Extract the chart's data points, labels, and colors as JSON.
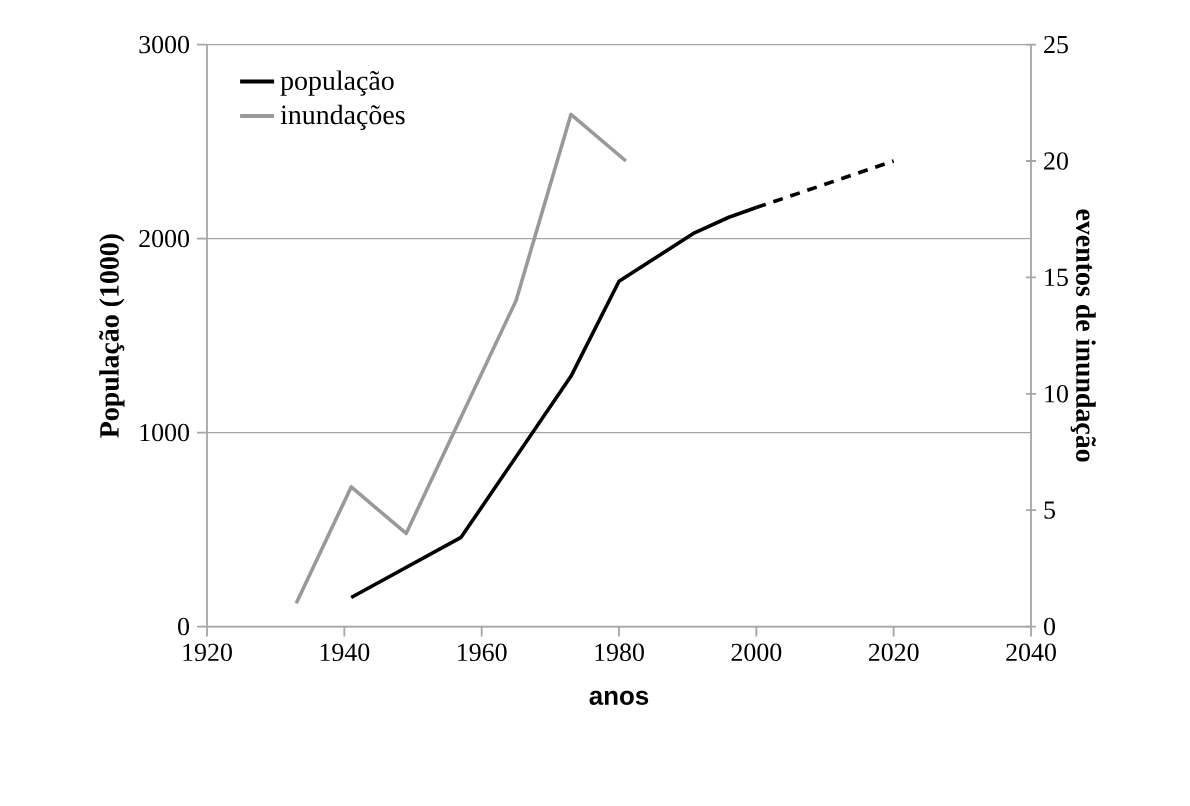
{
  "chart_data": {
    "type": "line",
    "xlabel": "anos",
    "ylabel": "População (1000)",
    "y2label": "eventos de inundação",
    "xlim": [
      1920,
      2040
    ],
    "xticks": [
      1920,
      1940,
      1960,
      1980,
      2000,
      2020,
      2040
    ],
    "ylim": [
      0,
      3000
    ],
    "yticks": [
      0,
      1000,
      2000,
      3000
    ],
    "y2lim": [
      0,
      25
    ],
    "y2ticks": [
      0,
      5,
      10,
      15,
      20,
      25
    ],
    "grid": "y",
    "legend": "top left",
    "marker": "none",
    "series": [
      {
        "name": "população",
        "color": "#000000",
        "line_style": "solid",
        "x": [
          1941,
          1957,
          1973,
          1980,
          1991,
          1996,
          2000
        ],
        "values": [
          150,
          460,
          1290,
          1780,
          2030,
          2110,
          2160
        ]
      },
      {
        "color": "#000000",
        "line_style": "dashed",
        "x": [
          2000,
          2020
        ],
        "values": [
          2160,
          2400
        ]
      },
      {
        "name": "inundações",
        "color": "#999999",
        "axis": "y2",
        "line_style": "solid",
        "x": [
          1933,
          1941,
          1949,
          1965,
          1973,
          1981
        ],
        "values": [
          1,
          6,
          4,
          14,
          22,
          20
        ]
      }
    ]
  }
}
